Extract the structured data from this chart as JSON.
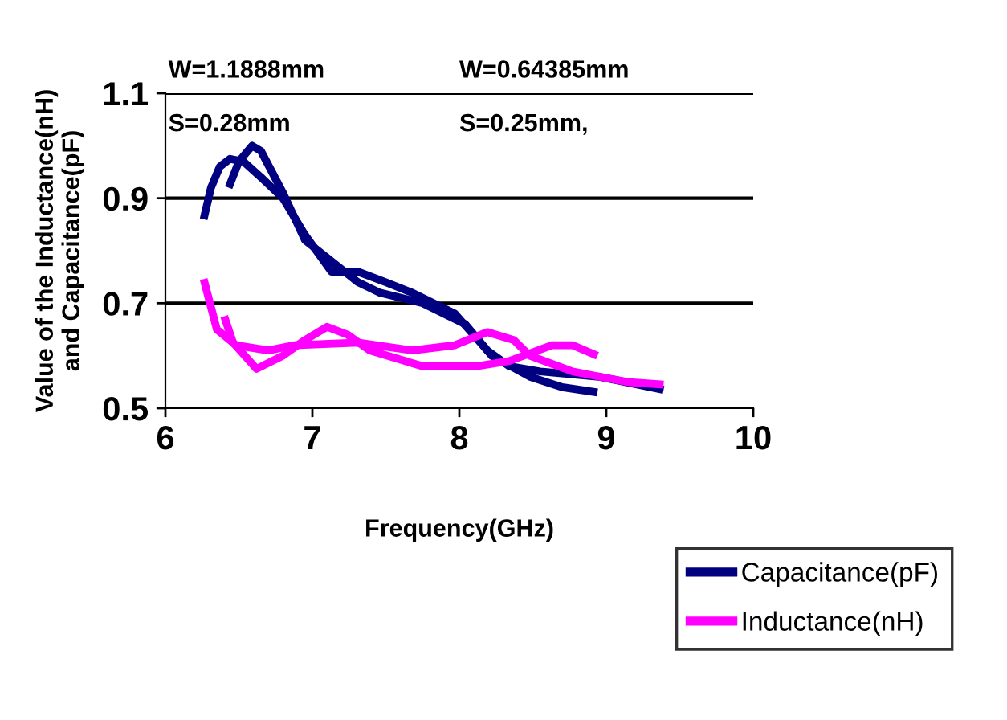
{
  "chart_data": {
    "type": "line",
    "xlabel": "Frequency(GHz)",
    "ylabel": "Value of the Inductance(nH)\nand Capacitance(pF)",
    "annotations": [
      "W=1.1888mm",
      "S=0.28mm",
      "W=0.64385mm",
      "S=0.25mm,"
    ],
    "xlim": [
      6,
      10
    ],
    "xticks": [
      6,
      7,
      8,
      9,
      10
    ],
    "ylim": [
      0.5,
      1.1
    ],
    "yticks": [
      0.5,
      0.7,
      0.9,
      1.1
    ],
    "grid": "y",
    "legend": "bottom right",
    "marker": "none",
    "line_style": "solid",
    "series": [
      {
        "name": "Capacitance(pF)",
        "color": "#000080",
        "x": [
          6.26,
          6.31,
          6.37,
          6.44,
          6.53,
          6.65,
          6.8,
          6.95,
          7.13,
          7.31,
          7.5,
          7.68,
          7.97,
          8.19,
          8.34,
          8.55,
          8.95,
          9.39
        ],
        "values": [
          0.86,
          0.92,
          0.96,
          0.975,
          0.97,
          0.94,
          0.9,
          0.83,
          0.76,
          0.76,
          0.74,
          0.72,
          0.68,
          0.61,
          0.58,
          0.57,
          0.56,
          0.535
        ]
      },
      {
        "color": "#000080",
        "x": [
          6.43,
          6.5,
          6.59,
          6.65,
          6.8,
          6.95,
          7.13,
          7.31,
          7.46,
          7.75,
          8.04,
          8.22,
          8.48,
          8.7,
          8.94
        ],
        "values": [
          0.92,
          0.97,
          1.0,
          0.99,
          0.91,
          0.82,
          0.78,
          0.74,
          0.72,
          0.7,
          0.66,
          0.6,
          0.56,
          0.54,
          0.53
        ]
      },
      {
        "name": "Inductance(nH)",
        "color": "#ff00ff",
        "x": [
          6.26,
          6.35,
          6.48,
          6.7,
          6.88,
          7.31,
          7.68,
          7.97,
          8.19,
          8.37,
          8.48,
          8.77,
          9.14,
          9.39
        ],
        "values": [
          0.746,
          0.65,
          0.62,
          0.61,
          0.62,
          0.625,
          0.61,
          0.62,
          0.645,
          0.63,
          0.6,
          0.57,
          0.55,
          0.545
        ]
      },
      {
        "color": "#ff00ff",
        "x": [
          6.4,
          6.46,
          6.62,
          6.8,
          6.95,
          7.1,
          7.24,
          7.39,
          7.75,
          8.12,
          8.34,
          8.63,
          8.77,
          8.94
        ],
        "values": [
          0.675,
          0.625,
          0.575,
          0.6,
          0.63,
          0.655,
          0.64,
          0.61,
          0.58,
          0.58,
          0.59,
          0.62,
          0.62,
          0.6
        ]
      }
    ]
  }
}
